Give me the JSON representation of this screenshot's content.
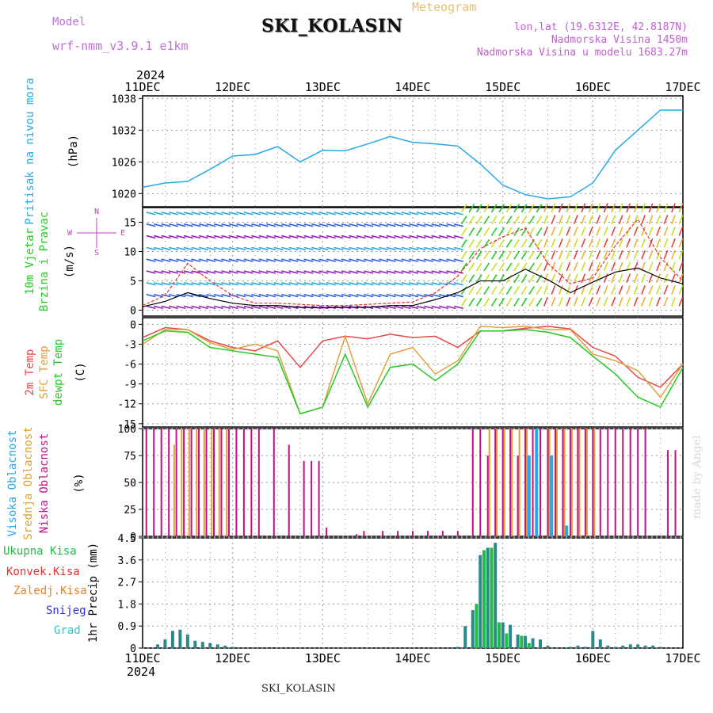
{
  "header": {
    "meteogram_label": "Meteogram",
    "station": "SKI_KOLASIN",
    "model_label": "Model",
    "model_name": "wrf-nmm_v3.9.1 e1km",
    "coords": "lon,lat (19.6312E, 42.8187N)",
    "elevation": "Nadmorska Visina 1450m",
    "model_elevation": "Nadmorska Visina u modelu 1683.27m"
  },
  "footer": {
    "station": "SKI_KOLASIN",
    "credit": "made by Angel"
  },
  "colors": {
    "pressure": "#29a8e8",
    "wind_speed": "#000000",
    "wind_gust": "#e83030",
    "t2m": "#e84848",
    "tsfc": "#e0a040",
    "dewpoint": "#22cc22",
    "high_cloud": "#29a8e8",
    "mid_cloud": "#e0a030",
    "low_cloud": "#c0108a",
    "total_precip": "#22bb44",
    "conv_precip": "#e83030",
    "frz_precip": "#f08020",
    "snow": "#3030e0",
    "graupel": "#20c8c8"
  },
  "chart_data": [
    {
      "type": "line",
      "panel": "pressure",
      "ylabel": "(hPa)",
      "side_label": "Pritisak na nivou mora",
      "ylim": [
        1017.5,
        1038.5
      ],
      "yticks": [
        1020,
        1026,
        1032,
        1038
      ],
      "year": "2024",
      "xticks": [
        "11DEC",
        "12DEC",
        "13DEC",
        "14DEC",
        "15DEC",
        "16DEC",
        "17DEC"
      ],
      "x_hours": [
        0,
        6,
        12,
        18,
        24,
        30,
        36,
        42,
        48,
        54,
        60,
        66,
        72,
        78,
        84,
        90,
        96,
        102,
        108,
        114,
        120,
        126,
        132,
        138,
        144
      ],
      "series": [
        {
          "values": [
            1021.2,
            1022.0,
            1022.3,
            1024.6,
            1027.1,
            1027.4,
            1028.9,
            1026.0,
            1028.2,
            1028.1,
            1029.4,
            1030.8,
            1029.7,
            1029.4,
            1029.0,
            1025.6,
            1021.6,
            1019.8,
            1019.0,
            1019.4,
            1022.0,
            1028.2,
            1032.0,
            1035.8,
            1035.8
          ]
        }
      ],
      "grid": true
    },
    {
      "type": "line",
      "panel": "wind",
      "ylabel": "(m/s)",
      "side_label_1": "10m Vjetar",
      "side_label_2": "Brzina i Pravac",
      "compass": [
        "N",
        "W",
        "E",
        "S"
      ],
      "ylim": [
        -1,
        17.5
      ],
      "yticks": [
        0,
        5,
        10,
        15
      ],
      "x_hours": [
        0,
        6,
        12,
        18,
        24,
        30,
        36,
        42,
        48,
        54,
        60,
        66,
        72,
        78,
        84,
        90,
        96,
        102,
        108,
        114,
        120,
        126,
        132,
        138,
        144
      ],
      "series": [
        {
          "name": "speed",
          "values": [
            0.6,
            1.5,
            3.0,
            2.0,
            1.2,
            0.8,
            0.8,
            0.5,
            0.4,
            0.5,
            0.5,
            0.8,
            0.8,
            1.8,
            3.0,
            5.0,
            5.0,
            7.0,
            5.2,
            3.0,
            4.8,
            6.5,
            7.2,
            5.5,
            4.5
          ]
        },
        {
          "name": "gust",
          "values": [
            0.8,
            2.5,
            8.0,
            5.0,
            2.5,
            1.2,
            1.2,
            1.0,
            0.8,
            0.8,
            1.0,
            1.2,
            1.4,
            3.0,
            5.8,
            10.5,
            12.5,
            14.0,
            8.0,
            4.5,
            5.5,
            11.0,
            15.5,
            9.0,
            5.0
          ]
        }
      ],
      "grid": true
    },
    {
      "type": "line",
      "panel": "temperature",
      "ylabel": "(C)",
      "side_label_1": "2m Temp",
      "side_label_2": "SFC Temp",
      "side_label_3": "dewpt Temp",
      "ylim": [
        -15.5,
        1
      ],
      "yticks": [
        0,
        -3,
        -6,
        -9,
        -12,
        -15
      ],
      "x_hours": [
        0,
        6,
        12,
        18,
        24,
        30,
        36,
        42,
        48,
        54,
        60,
        66,
        72,
        78,
        84,
        90,
        96,
        102,
        108,
        114,
        120,
        126,
        132,
        138,
        144
      ],
      "series": [
        {
          "name": "2m Temp",
          "values": [
            -2.0,
            -0.5,
            -0.8,
            -2.5,
            -3.5,
            -4.0,
            -2.5,
            -6.5,
            -2.5,
            -1.8,
            -2.2,
            -1.5,
            -2.0,
            -1.8,
            -3.5,
            -1.0,
            -1.0,
            -0.6,
            -0.3,
            -0.7,
            -3.5,
            -4.8,
            -8.0,
            -9.5,
            -6.0
          ]
        },
        {
          "name": "SFC Temp",
          "values": [
            -3.0,
            -0.8,
            -0.8,
            -2.8,
            -3.8,
            -3.0,
            -4.0,
            -13.5,
            -12.5,
            -1.8,
            -12.0,
            -4.5,
            -3.5,
            -7.5,
            -5.5,
            -0.3,
            -0.5,
            -0.3,
            -0.8,
            -0.8,
            -4.5,
            -5.5,
            -7.0,
            -11.0,
            -6.0
          ]
        },
        {
          "name": "dewpt Temp",
          "values": [
            -2.5,
            -1.0,
            -1.2,
            -3.5,
            -4.0,
            -4.5,
            -5.0,
            -13.5,
            -12.5,
            -4.5,
            -12.5,
            -6.5,
            -6.0,
            -8.5,
            -6.0,
            -1.0,
            -1.0,
            -0.8,
            -1.2,
            -2.0,
            -4.8,
            -7.5,
            -11.0,
            -12.5,
            -6.5
          ]
        }
      ],
      "grid": true
    },
    {
      "type": "bar",
      "panel": "clouds",
      "ylabel": "(%)",
      "side_label_1": "Visoka Oblacnost",
      "side_label_2": "Srednja Oblacnost",
      "side_label_3": "Niska Oblacnost",
      "ylim": [
        0,
        100
      ],
      "yticks": [
        0,
        25,
        50,
        75,
        100
      ],
      "series": [
        {
          "name": "Niska",
          "x_hours": [
            1,
            3,
            5,
            7,
            9,
            11,
            13,
            15,
            17,
            19,
            21,
            23,
            25,
            27,
            29,
            31,
            35,
            39,
            43,
            45,
            47,
            49,
            57,
            59,
            64,
            68,
            72,
            76,
            80,
            84,
            88,
            90,
            92,
            94,
            96,
            98,
            100,
            102,
            104,
            106,
            108,
            110,
            112,
            114,
            116,
            118,
            120,
            122,
            124,
            126,
            128,
            130,
            132,
            134,
            140,
            142
          ],
          "values": [
            100,
            100,
            100,
            100,
            100,
            100,
            100,
            100,
            100,
            100,
            100,
            100,
            100,
            100,
            100,
            100,
            100,
            85,
            70,
            70,
            70,
            8,
            2,
            5,
            5,
            5,
            5,
            5,
            5,
            5,
            100,
            100,
            75,
            100,
            100,
            100,
            75,
            100,
            100,
            100,
            100,
            100,
            100,
            100,
            100,
            100,
            100,
            100,
            100,
            100,
            100,
            100,
            100,
            100,
            80,
            80
          ]
        },
        {
          "name": "Srednja",
          "x_hours": [
            8,
            10,
            12,
            14,
            16,
            18,
            20,
            22,
            92,
            94,
            96,
            98,
            100,
            102,
            108,
            110,
            112,
            114,
            116,
            118,
            120
          ],
          "values": [
            85,
            100,
            100,
            100,
            100,
            100,
            100,
            100,
            100,
            100,
            100,
            100,
            100,
            100,
            100,
            100,
            100,
            100,
            100,
            100,
            100
          ]
        },
        {
          "name": "Visoka",
          "x_hours": [
            103,
            105,
            109,
            113
          ],
          "values": [
            75,
            100,
            75,
            10
          ]
        }
      ],
      "grid": true
    },
    {
      "type": "bar",
      "panel": "precip",
      "ylabel": "1hr Precip (mm)",
      "legend": [
        "Ukupna Kisa",
        "Konvek.Kisa",
        "Zaledj.Kisa",
        "Snijeg",
        "Grad"
      ],
      "ylim": [
        0,
        4.5
      ],
      "yticks": [
        0,
        0.9,
        1.8,
        2.7,
        3.6,
        4.5
      ],
      "xticks": [
        "11DEC",
        "12DEC",
        "13DEC",
        "14DEC",
        "15DEC",
        "16DEC",
        "17DEC"
      ],
      "year": "2024",
      "series": [
        {
          "name": "Snijeg",
          "x_hours": [
            4,
            6,
            8,
            10,
            12,
            14,
            16,
            18,
            20,
            22,
            24,
            84,
            86,
            88,
            90,
            92,
            94,
            96,
            98,
            100,
            102,
            104,
            106,
            108,
            114,
            116,
            118,
            120,
            122,
            124,
            126,
            128,
            130,
            132,
            134,
            136,
            138
          ],
          "values": [
            0.15,
            0.35,
            0.7,
            0.75,
            0.55,
            0.3,
            0.25,
            0.2,
            0.15,
            0.1,
            0.05,
            0.05,
            0.9,
            1.55,
            3.8,
            4.1,
            4.3,
            1.05,
            0.95,
            0.55,
            0.5,
            0.4,
            0.35,
            0.1,
            0.05,
            0.1,
            0.05,
            0.7,
            0.35,
            0.1,
            0.05,
            0.1,
            0.15,
            0.15,
            0.1,
            0.1,
            0.05
          ]
        },
        {
          "name": "Ukupna Kisa",
          "x_hours": [
            89,
            91,
            93,
            95,
            97,
            101,
            103
          ],
          "values": [
            1.8,
            4.0,
            4.1,
            1.05,
            0.6,
            0.5,
            0.2
          ]
        }
      ],
      "grid": true
    }
  ]
}
